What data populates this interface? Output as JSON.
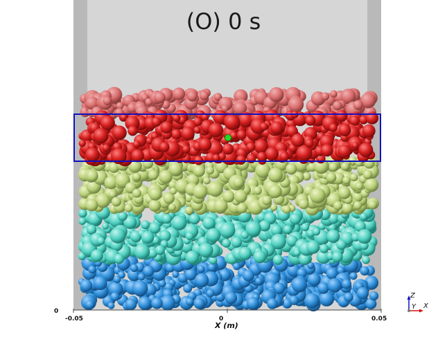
{
  "title": "(O) 0 s",
  "axis": {
    "x_title": "X (m)",
    "x_ticks": [
      "-0.05",
      "0",
      "0.05"
    ],
    "z_zero": "0"
  },
  "triad": {
    "z": "Z",
    "y": "Y",
    "x": "X"
  },
  "colors": {
    "background": "#ffffff",
    "container_wall": "#b9b9b9",
    "container_inner": "#d6d6d6",
    "layer1_top_pink": "#d86c6c",
    "layer2_red": "#d62020",
    "layer3_lime": "#b8cf78",
    "layer4_teal": "#4fd0c0",
    "layer5_blue": "#2e8ed8",
    "selection_box": "#1010c0",
    "marker_green": "#22dd22"
  }
}
